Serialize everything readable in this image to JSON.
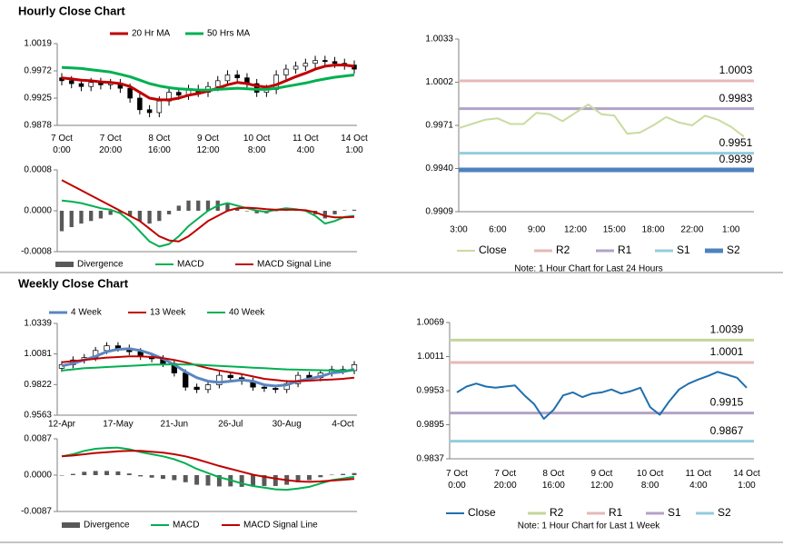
{
  "sections": [
    {
      "title": "Hourly Close Chart"
    },
    {
      "title": "Weekly Close Chart"
    }
  ],
  "chart_data": [
    {
      "type": "candlestick",
      "categories": [
        [
          "7 Oct",
          "0:00"
        ],
        null,
        null,
        null,
        null,
        [
          "7 Oct",
          "20:00"
        ],
        null,
        null,
        null,
        null,
        [
          "8 Oct",
          "16:00"
        ],
        null,
        null,
        null,
        null,
        [
          "9 Oct",
          "12:00"
        ],
        null,
        null,
        null,
        null,
        [
          "10 Oct",
          "8:00"
        ],
        null,
        null,
        null,
        null,
        [
          "11 Oct",
          "4:00"
        ],
        null,
        null,
        null,
        null,
        [
          "14 Oct",
          "1:00"
        ]
      ],
      "ohlc": {
        "open": [
          0.996,
          0.9955,
          0.995,
          0.9945,
          0.9952,
          0.9948,
          0.995,
          0.9942,
          0.9925,
          0.9905,
          0.99,
          0.992,
          0.9935,
          0.993,
          0.994,
          0.9935,
          0.9945,
          0.9955,
          0.9965,
          0.996,
          0.995,
          0.9935,
          0.994,
          0.9965,
          0.9975,
          0.998,
          0.9985,
          0.999,
          0.9988,
          0.9985,
          0.9982
        ],
        "high": [
          0.9968,
          0.9963,
          0.9958,
          0.996,
          0.996,
          0.9958,
          0.9958,
          0.995,
          0.9933,
          0.9913,
          0.9928,
          0.9943,
          0.9943,
          0.9948,
          0.9948,
          0.9953,
          0.9963,
          0.9973,
          0.9973,
          0.9968,
          0.9958,
          0.9948,
          0.9973,
          0.9983,
          0.9988,
          0.9993,
          0.9998,
          0.9998,
          0.9996,
          0.9993,
          0.999
        ],
        "low": [
          0.9947,
          0.9942,
          0.9937,
          0.9937,
          0.994,
          0.994,
          0.9934,
          0.9917,
          0.9897,
          0.9892,
          0.9892,
          0.9912,
          0.9922,
          0.9922,
          0.9927,
          0.9927,
          0.9937,
          0.9947,
          0.9952,
          0.9942,
          0.9927,
          0.9927,
          0.9932,
          0.9957,
          0.9967,
          0.9972,
          0.9977,
          0.998,
          0.9977,
          0.9974,
          0.9967
        ],
        "close": [
          0.9955,
          0.995,
          0.9945,
          0.9952,
          0.9948,
          0.995,
          0.9942,
          0.9925,
          0.9905,
          0.99,
          0.992,
          0.9935,
          0.993,
          0.994,
          0.9935,
          0.9945,
          0.9955,
          0.9965,
          0.996,
          0.995,
          0.9935,
          0.994,
          0.9965,
          0.9975,
          0.998,
          0.9985,
          0.999,
          0.9988,
          0.9985,
          0.9982,
          0.9975
        ]
      },
      "up_color": "#ffffff",
      "down_color": "#000000",
      "series": [
        {
          "name": "20 Hr MA",
          "color": "#c00000",
          "line_width": 3,
          "values": [
            0.996,
            0.9958,
            0.9956,
            0.9955,
            0.9953,
            0.9952,
            0.995,
            0.9945,
            0.9935,
            0.9925,
            0.9922,
            0.9922,
            0.9925,
            0.993,
            0.9933,
            0.9937,
            0.9942,
            0.9948,
            0.9952,
            0.995,
            0.9946,
            0.9944,
            0.9948,
            0.9955,
            0.9962,
            0.9968,
            0.9975,
            0.998,
            0.9982,
            0.9982,
            0.998
          ]
        },
        {
          "name": "50 Hrs MA",
          "color": "#00b050",
          "line_width": 3,
          "values": [
            0.9978,
            0.9977,
            0.9976,
            0.9974,
            0.9972,
            0.997,
            0.9966,
            0.9962,
            0.9956,
            0.995,
            0.9946,
            0.9943,
            0.9941,
            0.994,
            0.9939,
            0.9939,
            0.994,
            0.9941,
            0.9942,
            0.9941,
            0.994,
            0.994,
            0.9942,
            0.9945,
            0.9948,
            0.9951,
            0.9955,
            0.9958,
            0.9961,
            0.9963,
            0.9965
          ]
        }
      ],
      "ylim": [
        0.9878,
        1.0019
      ],
      "yticks": [
        0.9878,
        0.9925,
        0.9972,
        1.0019
      ]
    },
    {
      "type": "macd",
      "categories": [
        null,
        null,
        null,
        null,
        null,
        null,
        null,
        null,
        null,
        null,
        null,
        null,
        null,
        null,
        null,
        null,
        null,
        null,
        null,
        null,
        null,
        null,
        null,
        null,
        null,
        null,
        null,
        null,
        null,
        null,
        null
      ],
      "series": [
        {
          "name": "Divergence",
          "color": "#595959",
          "kind": "bar",
          "values": [
            -0.0004,
            -0.00032,
            -0.00025,
            -0.0002,
            -0.00015,
            -8e-05,
            -5e-05,
            -0.0001,
            -0.0002,
            -0.00025,
            -0.0002,
            -7e-05,
            0.0001,
            0.0002,
            0.0002,
            0.0002,
            0.0002,
            0.00015,
            5e-05,
            -1e-05,
            -5e-05,
            -5e-05,
            0,
            3e-05,
            1e-05,
            -1e-05,
            -7e-05,
            -0.00015,
            -7e-05,
            1e-05,
            2e-05
          ]
        },
        {
          "name": "MACD",
          "color": "#00b050",
          "line_width": 2,
          "values": [
            0.0002,
            0.00018,
            0.00015,
            0.0001,
            5e-05,
            2e-05,
            -5e-05,
            -0.0002,
            -0.0004,
            -0.0006,
            -0.0007,
            -0.00065,
            -0.0005,
            -0.0003,
            -0.00015,
            0,
            0.0001,
            0.00015,
            0.0001,
            5e-05,
            0,
            -2e-05,
            2e-05,
            5e-05,
            3e-05,
            0,
            -0.0001,
            -0.00025,
            -0.0002,
            -0.00012,
            -0.0001
          ]
        },
        {
          "name": "MACD Signal Line",
          "color": "#c00000",
          "line_width": 2,
          "values": [
            0.0006,
            0.0005,
            0.0004,
            0.0003,
            0.0002,
            0.0001,
            0,
            -0.0001,
            -0.0002,
            -0.00035,
            -0.0005,
            -0.00058,
            -0.0006,
            -0.0005,
            -0.00035,
            -0.0002,
            -0.0001,
            0,
            5e-05,
            6e-05,
            5e-05,
            3e-05,
            2e-05,
            2e-05,
            2e-05,
            1e-05,
            -3e-05,
            -0.0001,
            -0.00013,
            -0.00013,
            -0.00012
          ]
        }
      ],
      "ylim": [
        -0.0008,
        0.0008
      ],
      "yticks": [
        -0.0008,
        {
          "value": 0,
          "label": "0.0000"
        },
        0.0008
      ]
    },
    {
      "type": "line",
      "categories": [
        "3:00",
        null,
        null,
        "6:00",
        null,
        null,
        "9:00",
        null,
        null,
        "12:00",
        null,
        null,
        "15:00",
        null,
        null,
        "18:00",
        null,
        null,
        "22:00",
        null,
        null,
        "1:00",
        null
      ],
      "series": [
        {
          "name": "Close",
          "color": "#c9dba0",
          "line_width": 2,
          "values": [
            0.9969,
            0.9972,
            0.9975,
            0.9976,
            0.9972,
            0.9972,
            0.998,
            0.9979,
            0.9974,
            0.998,
            0.9986,
            0.9979,
            0.9978,
            0.9965,
            0.9966,
            0.9971,
            0.9977,
            0.9973,
            0.9971,
            0.9978,
            0.9975,
            0.997,
            0.9963
          ]
        }
      ],
      "levels": [
        {
          "name": "R2",
          "color": "#e6b8b7",
          "line_width": 3,
          "value": 1.0003
        },
        {
          "name": "R1",
          "color": "#b3a2c7",
          "line_width": 3,
          "value": 0.9983
        },
        {
          "name": "S1",
          "color": "#92cddc",
          "line_width": 3,
          "value": 0.9951
        },
        {
          "name": "S2",
          "color": "#4f81bd",
          "line_width": 5,
          "value": 0.9939
        }
      ],
      "note": "Note: 1 Hour Chart for Last 24 Hours",
      "ylim": [
        0.9909,
        1.0033
      ],
      "yticks": [
        0.9909,
        {
          "value": 0.994,
          "label": "0.9940"
        },
        0.9971,
        1.0002,
        1.0033
      ]
    },
    {
      "type": "candlestick",
      "categories": [
        "12-Apr",
        null,
        null,
        null,
        null,
        "17-May",
        null,
        null,
        null,
        null,
        "21-Jun",
        null,
        null,
        null,
        null,
        "26-Jul",
        null,
        null,
        null,
        null,
        "30-Aug",
        null,
        null,
        null,
        null,
        "4-Oct",
        null
      ],
      "ohlc": {
        "open": [
          0.996,
          0.999,
          1.003,
          1.005,
          1.011,
          1.015,
          1.013,
          1.01,
          1.006,
          1.004,
          1.0,
          0.992,
          0.98,
          0.978,
          0.982,
          0.99,
          0.988,
          0.985,
          0.98,
          0.979,
          0.978,
          0.983,
          0.99,
          0.988,
          0.992,
          0.995,
          0.994
        ],
        "high": [
          1.002,
          1.006,
          1.008,
          1.014,
          1.018,
          1.018,
          1.016,
          1.013,
          1.009,
          1.007,
          1.003,
          0.995,
          0.983,
          0.985,
          0.993,
          0.993,
          0.991,
          0.988,
          0.983,
          0.982,
          0.986,
          0.993,
          0.993,
          0.995,
          0.998,
          0.998,
          1.002
        ],
        "low": [
          0.993,
          0.996,
          1.0,
          1.002,
          1.008,
          1.01,
          1.007,
          1.003,
          1.001,
          0.997,
          0.989,
          0.977,
          0.975,
          0.975,
          0.979,
          0.985,
          0.982,
          0.977,
          0.976,
          0.975,
          0.975,
          0.98,
          0.985,
          0.985,
          0.989,
          0.991,
          0.991
        ],
        "close": [
          0.999,
          1.003,
          1.005,
          1.011,
          1.015,
          1.013,
          1.01,
          1.006,
          1.004,
          1.0,
          0.992,
          0.98,
          0.978,
          0.982,
          0.99,
          0.988,
          0.985,
          0.98,
          0.979,
          0.978,
          0.983,
          0.99,
          0.988,
          0.992,
          0.995,
          0.994,
          0.999
        ]
      },
      "up_color": "#ffffff",
      "down_color": "#000000",
      "series": [
        {
          "name": "4 Week",
          "color": "#5b86c0",
          "line_width": 3,
          "values": [
            0.998,
            1.0,
            1.003,
            1.006,
            1.01,
            1.012,
            1.0125,
            1.011,
            1.008,
            1.004,
            0.999,
            0.993,
            0.988,
            0.985,
            0.984,
            0.985,
            0.986,
            0.985,
            0.982,
            0.981,
            0.982,
            0.985,
            0.987,
            0.989,
            0.992,
            0.993,
            0.995
          ]
        },
        {
          "name": "13 Week",
          "color": "#c00000",
          "line_width": 2,
          "values": [
            1.001,
            1.002,
            1.003,
            1.004,
            1.005,
            1.0055,
            1.006,
            1.006,
            1.0055,
            1.0045,
            1.003,
            1.001,
            0.9985,
            0.996,
            0.994,
            0.9925,
            0.991,
            0.989,
            0.987,
            0.986,
            0.985,
            0.985,
            0.9855,
            0.986,
            0.9865,
            0.987,
            0.988
          ]
        },
        {
          "name": "40 Week",
          "color": "#00b050",
          "line_width": 2,
          "values": [
            0.994,
            0.995,
            0.996,
            0.9965,
            0.997,
            0.9975,
            0.998,
            0.9985,
            0.999,
            0.9992,
            0.9993,
            0.9992,
            0.999,
            0.9985,
            0.998,
            0.9975,
            0.997,
            0.9965,
            0.996,
            0.9955,
            0.995,
            0.9948,
            0.9945,
            0.9943,
            0.9942,
            0.9942,
            0.9942
          ]
        }
      ],
      "ylim": [
        0.9563,
        1.0339
      ],
      "yticks": [
        0.9563,
        0.9822,
        1.0081,
        1.0339
      ]
    },
    {
      "type": "macd",
      "categories": [
        null,
        null,
        null,
        null,
        null,
        null,
        null,
        null,
        null,
        null,
        null,
        null,
        null,
        null,
        null,
        null,
        null,
        null,
        null,
        null,
        null,
        null,
        null,
        null,
        null,
        null,
        null
      ],
      "series": [
        {
          "name": "Divergence",
          "color": "#595959",
          "kind": "bar",
          "values": [
            0,
            0.0003,
            0.0008,
            0.001,
            0.001,
            0.0009,
            0.0004,
            -0.0003,
            -0.0006,
            -0.0009,
            -0.0012,
            -0.0017,
            -0.0023,
            -0.0025,
            -0.0027,
            -0.0027,
            -0.0028,
            -0.0027,
            -0.0026,
            -0.0026,
            -0.0023,
            -0.0017,
            -0.0012,
            -0.0005,
            0.0001,
            0.0003,
            0.0005
          ]
        },
        {
          "name": "MACD",
          "color": "#00b050",
          "line_width": 2,
          "values": [
            0.0045,
            0.005,
            0.0058,
            0.0063,
            0.0065,
            0.0066,
            0.0062,
            0.0055,
            0.005,
            0.0045,
            0.0038,
            0.0028,
            0.0015,
            0.0005,
            -0.0005,
            -0.0012,
            -0.002,
            -0.0026,
            -0.003,
            -0.0034,
            -0.0035,
            -0.0032,
            -0.0028,
            -0.002,
            -0.0012,
            -0.0008,
            -0.0004
          ]
        },
        {
          "name": "MACD Signal Line",
          "color": "#c00000",
          "line_width": 2,
          "values": [
            0.0045,
            0.0047,
            0.005,
            0.0053,
            0.0055,
            0.0057,
            0.0058,
            0.0058,
            0.0056,
            0.0054,
            0.005,
            0.0045,
            0.0038,
            0.003,
            0.0022,
            0.0015,
            0.0008,
            0.0001,
            -0.0004,
            -0.0008,
            -0.0012,
            -0.0015,
            -0.0016,
            -0.0015,
            -0.0013,
            -0.0011,
            -0.0009
          ]
        }
      ],
      "ylim": [
        -0.0087,
        0.0087
      ],
      "yticks": [
        -0.0087,
        {
          "value": 0,
          "label": "0.0000"
        },
        0.0087
      ]
    },
    {
      "type": "line",
      "categories": [
        [
          "7 Oct",
          "0:00"
        ],
        null,
        null,
        null,
        null,
        [
          "7 Oct",
          "20:00"
        ],
        null,
        null,
        null,
        null,
        [
          "8 Oct",
          "16:00"
        ],
        null,
        null,
        null,
        null,
        [
          "9 Oct",
          "12:00"
        ],
        null,
        null,
        null,
        null,
        [
          "10 Oct",
          "8:00"
        ],
        null,
        null,
        null,
        null,
        [
          "11 Oct",
          "4:00"
        ],
        null,
        null,
        null,
        null,
        [
          "14 Oct",
          "1:00"
        ]
      ],
      "series": [
        {
          "name": "Close",
          "color": "#1f6fae",
          "line_width": 2,
          "values": [
            0.995,
            0.996,
            0.9965,
            0.996,
            0.9958,
            0.996,
            0.9962,
            0.9945,
            0.993,
            0.9905,
            0.992,
            0.9945,
            0.995,
            0.9942,
            0.9948,
            0.995,
            0.9955,
            0.9948,
            0.9952,
            0.9958,
            0.9925,
            0.9912,
            0.9935,
            0.9955,
            0.9965,
            0.9972,
            0.9978,
            0.9985,
            0.998,
            0.9975,
            0.9958
          ]
        }
      ],
      "levels": [
        {
          "name": "R2",
          "color": "#c3d69b",
          "line_width": 3,
          "value": 1.0039
        },
        {
          "name": "R1",
          "color": "#e6b8b7",
          "line_width": 3,
          "value": 1.0001
        },
        {
          "name": "S1",
          "color": "#b3a2c7",
          "line_width": 3,
          "value": 0.9915
        },
        {
          "name": "S2",
          "color": "#92cddc",
          "line_width": 3,
          "value": 0.9867
        }
      ],
      "note": "Note: 1 Hour Chart for Last 1 Week",
      "ylim": [
        0.9837,
        1.0069
      ],
      "yticks": [
        0.9837,
        0.9895,
        0.9953,
        1.0011,
        1.0069
      ]
    }
  ]
}
